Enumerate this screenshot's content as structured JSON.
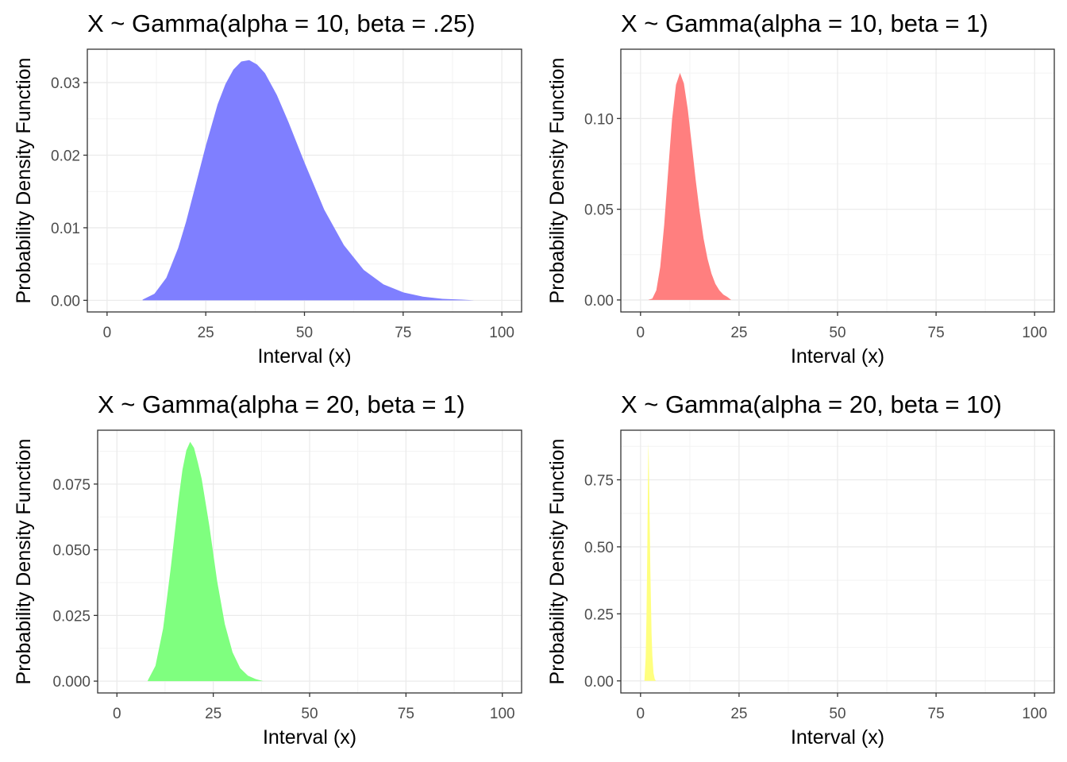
{
  "chart_data": [
    {
      "type": "area",
      "title": "X ~ Gamma(alpha = 10, beta = .25)",
      "xlabel": "Interval (x)",
      "ylabel": "Probability Density Function",
      "xlim": [
        -5,
        105
      ],
      "ylim": [
        -0.0016,
        0.0346
      ],
      "xticks": [
        0,
        25,
        50,
        75,
        100
      ],
      "yticks": [
        0.0,
        0.01,
        0.02,
        0.03
      ],
      "ytick_labels": [
        "0.00",
        "0.01",
        "0.02",
        "0.03"
      ],
      "grid": true,
      "fill_color": "#7f7fff",
      "series": [
        {
          "x": [
            9,
            12,
            15,
            18,
            20,
            22,
            25,
            28,
            30,
            32,
            34,
            36,
            38,
            40,
            43,
            46,
            50,
            55,
            60,
            65,
            70,
            75,
            80,
            85,
            90,
            93
          ],
          "values": [
            0.0001,
            0.0009,
            0.0031,
            0.0072,
            0.0108,
            0.015,
            0.0213,
            0.027,
            0.0298,
            0.0318,
            0.0329,
            0.0331,
            0.0325,
            0.0313,
            0.0283,
            0.0245,
            0.019,
            0.0125,
            0.0076,
            0.0042,
            0.0022,
            0.0011,
            0.0005,
            0.0002,
            0.0001,
            0.0
          ]
        }
      ]
    },
    {
      "type": "area",
      "title": "X ~ Gamma(alpha = 10, beta = 1)",
      "xlabel": "Interval (x)",
      "ylabel": "Probability Density Function",
      "xlim": [
        -5,
        105
      ],
      "ylim": [
        -0.0066,
        0.1382
      ],
      "xticks": [
        0,
        25,
        50,
        75,
        100
      ],
      "yticks": [
        0.0,
        0.05,
        0.1
      ],
      "ytick_labels": [
        "0.00",
        "0.05",
        "0.10"
      ],
      "grid": true,
      "fill_color": "#ff7f7f",
      "series": [
        {
          "x": [
            2,
            3,
            4,
            5,
            6,
            7,
            8,
            9,
            10,
            11,
            12,
            13,
            14,
            15,
            16,
            17,
            18,
            19,
            20,
            21,
            22,
            23
          ],
          "values": [
            0.0001,
            0.0008,
            0.0053,
            0.0181,
            0.0413,
            0.071,
            0.0993,
            0.1186,
            0.1251,
            0.1194,
            0.1048,
            0.0859,
            0.0661,
            0.0486,
            0.0339,
            0.0227,
            0.0145,
            0.0089,
            0.0053,
            0.003,
            0.0017,
            0.0
          ]
        }
      ]
    },
    {
      "type": "area",
      "title": "X ~ Gamma(alpha = 20, beta = 1)",
      "xlabel": "Interval (x)",
      "ylabel": "Probability Density Function",
      "xlim": [
        -5,
        105
      ],
      "ylim": [
        -0.0045,
        0.0955
      ],
      "xticks": [
        0,
        25,
        50,
        75,
        100
      ],
      "yticks": [
        0.0,
        0.025,
        0.05,
        0.075
      ],
      "ytick_labels": [
        "0.000",
        "0.025",
        "0.050",
        "0.075"
      ],
      "grid": true,
      "fill_color": "#7fff7f",
      "series": [
        {
          "x": [
            8,
            10,
            12,
            14,
            16,
            17,
            18,
            19,
            20,
            21,
            22,
            24,
            26,
            28,
            30,
            32,
            34,
            36,
            38
          ],
          "values": [
            0.0002,
            0.0058,
            0.0201,
            0.0434,
            0.0692,
            0.0804,
            0.0878,
            0.0911,
            0.0888,
            0.0832,
            0.0769,
            0.0589,
            0.0381,
            0.0217,
            0.011,
            0.0049,
            0.0021,
            0.0008,
            0.0
          ]
        }
      ]
    },
    {
      "type": "area",
      "title": "X ~ Gamma(alpha = 20, beta = 10)",
      "xlabel": "Interval (x)",
      "ylabel": "Probability Density Function",
      "xlim": [
        -5,
        105
      ],
      "ylim": [
        -0.045,
        0.935
      ],
      "xticks": [
        0,
        25,
        50,
        75,
        100
      ],
      "yticks": [
        0.0,
        0.25,
        0.5,
        0.75
      ],
      "ytick_labels": [
        "0.00",
        "0.25",
        "0.50",
        "0.75"
      ],
      "grid": true,
      "fill_color": "#ffff7f",
      "series": [
        {
          "x": [
            1.0,
            1.3,
            1.5,
            1.7,
            1.9,
            2.0,
            2.1,
            2.3,
            2.5,
            2.8,
            3.0,
            3.3,
            3.6,
            3.9
          ],
          "values": [
            0.0053,
            0.088,
            0.236,
            0.474,
            0.76,
            0.888,
            0.836,
            0.625,
            0.412,
            0.177,
            0.095,
            0.029,
            0.007,
            0.0
          ]
        }
      ]
    }
  ]
}
